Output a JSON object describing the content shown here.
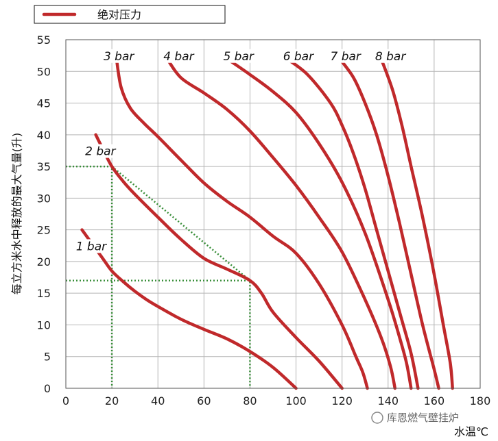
{
  "chart_data": {
    "type": "line",
    "title": "",
    "xlabel": "水温℃",
    "ylabel": "每立方米水中释放的最大气量(升)",
    "xlim": [
      0,
      180
    ],
    "ylim": [
      0,
      55
    ],
    "xticks": [
      0,
      20,
      40,
      60,
      80,
      100,
      120,
      140,
      160,
      180
    ],
    "yticks": [
      0,
      5,
      10,
      15,
      20,
      25,
      30,
      35,
      40,
      45,
      50,
      55
    ],
    "grid": true,
    "legend": {
      "position": "top-left",
      "entries": [
        {
          "label": "绝对压力",
          "color": "#c0292b"
        }
      ]
    },
    "series": [
      {
        "label": "1 bar",
        "color": "#c0292b",
        "points": [
          [
            7,
            25
          ],
          [
            12,
            22.5
          ],
          [
            16,
            20.5
          ],
          [
            20,
            18.5
          ],
          [
            25,
            16.8
          ],
          [
            30,
            15.3
          ],
          [
            35,
            14
          ],
          [
            40,
            12.9
          ],
          [
            50,
            10.9
          ],
          [
            60,
            9.3
          ],
          [
            70,
            7.8
          ],
          [
            80,
            5.8
          ],
          [
            90,
            3.3
          ],
          [
            100,
            0
          ]
        ]
      },
      {
        "label": "2 bar",
        "color": "#c0292b",
        "points": [
          [
            13,
            40
          ],
          [
            16,
            37.8
          ],
          [
            20,
            35
          ],
          [
            25,
            32.6
          ],
          [
            30,
            30.6
          ],
          [
            40,
            27
          ],
          [
            50,
            23.5
          ],
          [
            60,
            20.5
          ],
          [
            70,
            18.8
          ],
          [
            80,
            17
          ],
          [
            85,
            15
          ],
          [
            90,
            12
          ],
          [
            100,
            8
          ],
          [
            110,
            4.3
          ],
          [
            120,
            0
          ]
        ]
      },
      {
        "label": "3 bar",
        "color": "#c0292b",
        "points": [
          [
            22,
            52
          ],
          [
            24,
            47.5
          ],
          [
            28,
            44.2
          ],
          [
            34,
            41.8
          ],
          [
            40,
            39.7
          ],
          [
            50,
            36
          ],
          [
            60,
            32.4
          ],
          [
            70,
            29.5
          ],
          [
            80,
            27
          ],
          [
            90,
            24
          ],
          [
            100,
            21.3
          ],
          [
            110,
            16.5
          ],
          [
            120,
            10
          ],
          [
            126,
            5
          ],
          [
            129,
            2.5
          ],
          [
            131,
            0
          ]
        ]
      },
      {
        "label": "4 bar",
        "color": "#c0292b",
        "points": [
          [
            44,
            52
          ],
          [
            50,
            49
          ],
          [
            60,
            46.6
          ],
          [
            70,
            44
          ],
          [
            80,
            40.6
          ],
          [
            90,
            36.4
          ],
          [
            100,
            32
          ],
          [
            110,
            27
          ],
          [
            120,
            21.5
          ],
          [
            130,
            14
          ],
          [
            137,
            8
          ],
          [
            141,
            3.5
          ],
          [
            143,
            0
          ]
        ]
      },
      {
        "label": "5 bar",
        "color": "#c0292b",
        "points": [
          [
            70,
            52
          ],
          [
            80,
            49.5
          ],
          [
            90,
            46.8
          ],
          [
            100,
            43.5
          ],
          [
            110,
            38.6
          ],
          [
            120,
            32.5
          ],
          [
            130,
            24.5
          ],
          [
            140,
            14
          ],
          [
            145,
            8
          ],
          [
            148,
            4
          ],
          [
            150,
            0
          ]
        ]
      },
      {
        "label": "6 bar",
        "color": "#c0292b",
        "points": [
          [
            96,
            52
          ],
          [
            105,
            49.5
          ],
          [
            115,
            45
          ],
          [
            120,
            41.5
          ],
          [
            125,
            37
          ],
          [
            130,
            31.5
          ],
          [
            135,
            25
          ],
          [
            140,
            18.5
          ],
          [
            145,
            12
          ],
          [
            150,
            5.5
          ],
          [
            153,
            0
          ]
        ]
      },
      {
        "label": "7 bar",
        "color": "#c0292b",
        "points": [
          [
            119,
            52
          ],
          [
            125,
            49
          ],
          [
            130,
            45
          ],
          [
            135,
            40
          ],
          [
            140,
            33.5
          ],
          [
            145,
            26
          ],
          [
            150,
            18
          ],
          [
            155,
            10
          ],
          [
            160,
            3
          ],
          [
            162,
            0
          ]
        ]
      },
      {
        "label": "8 bar",
        "color": "#c0292b",
        "points": [
          [
            137,
            52
          ],
          [
            142,
            47
          ],
          [
            146,
            41.5
          ],
          [
            150,
            35
          ],
          [
            155,
            27
          ],
          [
            160,
            18
          ],
          [
            164,
            10
          ],
          [
            167,
            4
          ],
          [
            168,
            0
          ]
        ]
      }
    ],
    "curve_labels": [
      {
        "text": "1 bar",
        "x": 11,
        "y": 22
      },
      {
        "text": "2 bar",
        "x": 15,
        "y": 37
      },
      {
        "text": "3 bar",
        "x": 23,
        "y": 52
      },
      {
        "text": "4 bar",
        "x": 49,
        "y": 52
      },
      {
        "text": "5 bar",
        "x": 75,
        "y": 52
      },
      {
        "text": "6 bar",
        "x": 101,
        "y": 52
      },
      {
        "text": "7 bar",
        "x": 121.5,
        "y": 52
      },
      {
        "text": "8 bar",
        "x": 141,
        "y": 52
      }
    ],
    "guides": {
      "color": "#3a8f3a",
      "lines": [
        [
          [
            0,
            35
          ],
          [
            20,
            35
          ],
          [
            20,
            0
          ]
        ],
        [
          [
            0,
            17
          ],
          [
            80,
            17
          ],
          [
            80,
            0
          ]
        ],
        [
          [
            20,
            35
          ],
          [
            80,
            17
          ]
        ]
      ]
    }
  },
  "watermark": "库恩燃气壁挂炉"
}
